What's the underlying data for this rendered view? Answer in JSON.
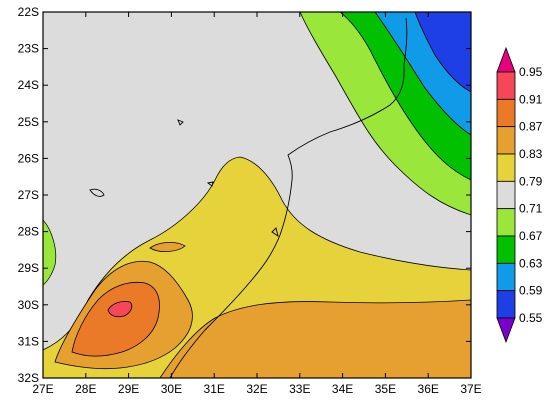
{
  "chart_data": {
    "type": "heatmap",
    "title": "",
    "xlabel": "",
    "ylabel": "",
    "xlim": [
      27,
      37
    ],
    "ylim": [
      -32,
      -22
    ],
    "x_ticks": [
      "27E",
      "28E",
      "29E",
      "30E",
      "31E",
      "32E",
      "33E",
      "34E",
      "35E",
      "36E",
      "37E"
    ],
    "y_ticks": [
      "22S",
      "23S",
      "24S",
      "25S",
      "26S",
      "27S",
      "28S",
      "29S",
      "30S",
      "31S",
      "32S"
    ],
    "colorbar": {
      "levels": [
        "0.55",
        "0.59",
        "0.63",
        "0.67",
        "0.71",
        "0.79",
        "0.83",
        "0.87",
        "0.91",
        "0.95"
      ],
      "colors": [
        "#7a00cc",
        "#1f3fe6",
        "#0f9be8",
        "#00c000",
        "#9be63a",
        "#dcdcdc",
        "#e6d23a",
        "#e6a030",
        "#ea7a28",
        "#f5465a",
        "#e6007a"
      ],
      "extend": "both",
      "placement": "right"
    },
    "fill_colors": {
      "land": "#dcdcdc",
      "ocean_low": "#e6a030",
      "coast_band": "#e6d23a",
      "mid": "#ea7a28",
      "peak": "#f5465a",
      "green_light": "#9be63a",
      "green": "#00c000",
      "cyan": "#0f9be8",
      "blue": "#1f3fe6"
    }
  }
}
